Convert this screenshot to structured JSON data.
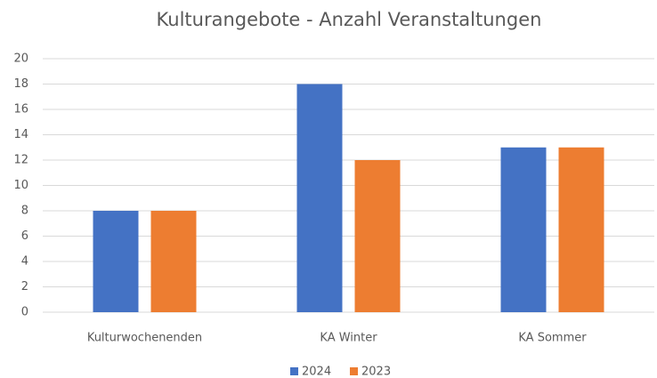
{
  "chart_data": {
    "type": "bar",
    "title": "Kulturangebote - Anzahl Veranstaltungen",
    "categories": [
      "Kulturwochenenden",
      "KA Winter",
      "KA Sommer"
    ],
    "series": [
      {
        "name": "2024",
        "color": "#4472c4",
        "values": [
          8,
          18,
          13
        ]
      },
      {
        "name": "2023",
        "color": "#ed7d31",
        "values": [
          8,
          12,
          13
        ]
      }
    ],
    "ylim": [
      0,
      20
    ],
    "yticks": [
      0,
      2,
      4,
      6,
      8,
      10,
      12,
      14,
      16,
      18,
      20
    ],
    "grid": true,
    "legend": "bottom"
  }
}
